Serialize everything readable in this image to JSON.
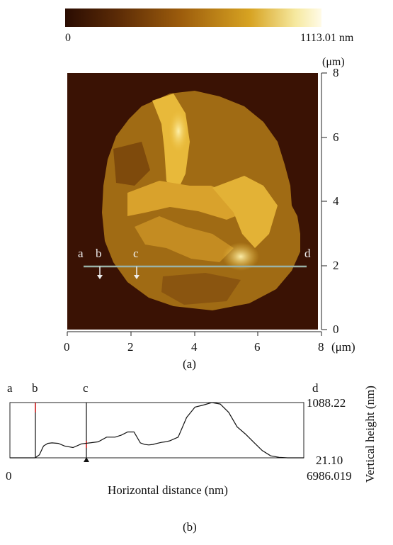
{
  "figure_a": {
    "colorbar": {
      "min_label": "0",
      "max_label": "1113.01 nm",
      "colors": [
        "#2a0c02",
        "#5a2a06",
        "#9c5c0c",
        "#d7a322",
        "#f6e9a0",
        "#fffbe8"
      ]
    },
    "y_unit": "(μm)",
    "x_unit": "(μm)",
    "x_ticks": [
      "0",
      "2",
      "4",
      "6",
      "8"
    ],
    "y_ticks": [
      "8",
      "6",
      "4",
      "2",
      "0"
    ],
    "line_markers": [
      "a",
      "b",
      "c",
      "d"
    ],
    "caption": "(a)"
  },
  "figure_b": {
    "markers": [
      "a",
      "b",
      "c",
      "d"
    ],
    "y_max_label": "1088.22",
    "y_min_label": "21.10",
    "x_min_label": "0",
    "x_max_label": "6986.019",
    "xlabel": "Horizontal distance (nm)",
    "ylabel": "Vertical height (nm)",
    "caption": "(b)",
    "chart_data": {
      "type": "line",
      "xlabel": "Horizontal distance (nm)",
      "ylabel": "Vertical height (nm)",
      "xlim": [
        0,
        6986.019
      ],
      "ylim": [
        21.1,
        1088.22
      ],
      "x": [
        0,
        600,
        700,
        800,
        900,
        1000,
        1150,
        1300,
        1500,
        1700,
        1900,
        2100,
        2300,
        2500,
        2650,
        2800,
        2950,
        3100,
        3200,
        3300,
        3400,
        3500,
        3600,
        3700,
        3800,
        4000,
        4200,
        4400,
        4600,
        4800,
        5000,
        5200,
        5400,
        5600,
        5800,
        6000,
        6200,
        6400,
        6600,
        6986.019
      ],
      "y": [
        21.1,
        21.1,
        80,
        250,
        300,
        310,
        300,
        250,
        220,
        290,
        310,
        330,
        420,
        420,
        460,
        520,
        520,
        310,
        280,
        270,
        280,
        300,
        320,
        330,
        350,
        420,
        800,
        1000,
        1040,
        1088,
        1060,
        900,
        620,
        480,
        320,
        160,
        60,
        30,
        21.1,
        21.1
      ]
    }
  }
}
